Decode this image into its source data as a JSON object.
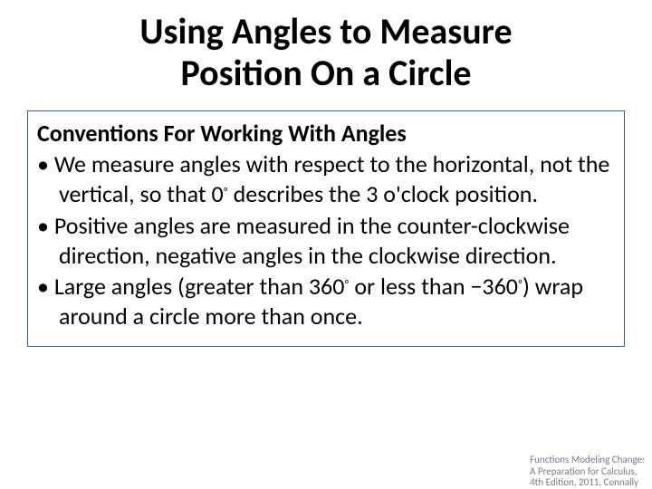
{
  "title": {
    "line1": "Using Angles to Measure",
    "line2": "Position On a Circle",
    "fontsize": 40,
    "color": "#000000"
  },
  "content": {
    "border_color": "#3b5a9a",
    "subtitle": "Conventions For Working With Angles",
    "subtitle_fontsize": 26,
    "body_fontsize": 26,
    "bullets": [
      {
        "pre": "We measure angles with respect to the horizontal, not the vertical, so that 0",
        "deg": "◦",
        "post": " describes the 3 o'clock position."
      },
      {
        "pre": "Positive angles are measured in the counter-clockwise direction, negative angles in the clockwise direction.",
        "deg": "",
        "post": ""
      },
      {
        "pre": "Large angles (greater than 360",
        "deg": "◦",
        "mid": " or less than −360",
        "deg2": "◦",
        "post": ") wrap around a circle more than once."
      }
    ]
  },
  "footer": {
    "line1": "Functions Modeling Change:",
    "line2": "A Preparation for Calculus,",
    "line3": "4th Edition, 2011, Connally",
    "fontsize": 11,
    "color": "#7a7a8a"
  }
}
